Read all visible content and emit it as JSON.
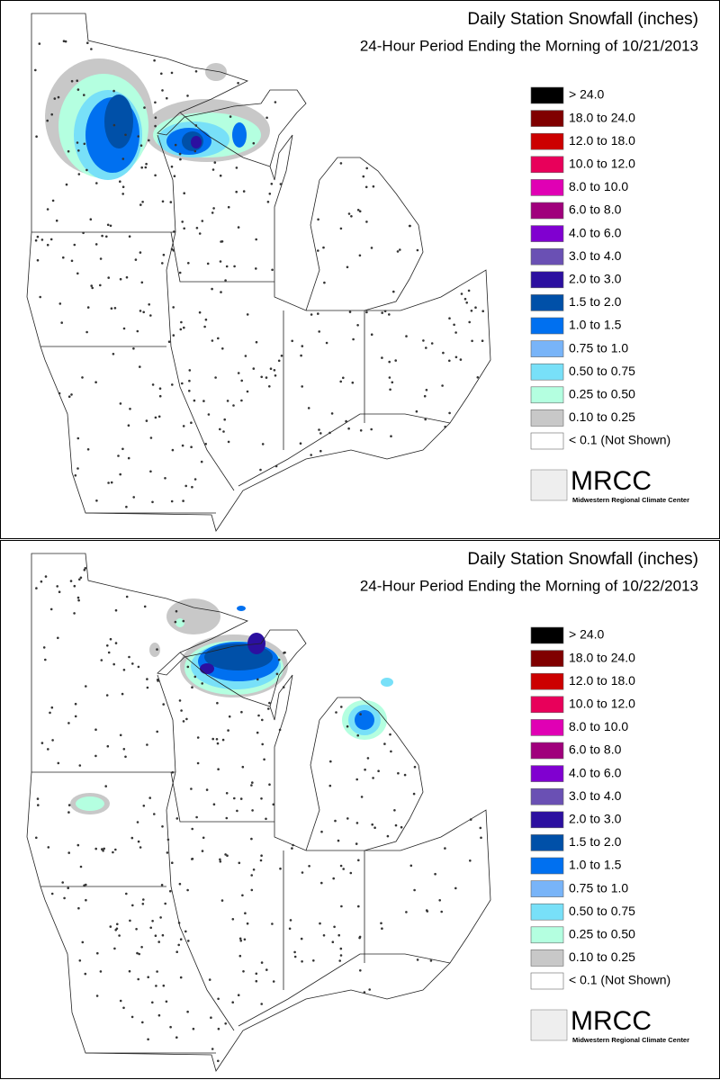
{
  "panels": [
    {
      "title": "Daily Station Snowfall (inches)",
      "subtitle": "24-Hour Period Ending the Morning of 10/21/2013",
      "legend": [
        {
          "label": "> 24.0",
          "color": "#000000"
        },
        {
          "label": "18.0 to 24.0",
          "color": "#800000"
        },
        {
          "label": "12.0 to 18.0",
          "color": "#cc0000"
        },
        {
          "label": "10.0 to 12.0",
          "color": "#e8005a"
        },
        {
          "label": "8.0 to 10.0",
          "color": "#e000b4"
        },
        {
          "label": "6.0 to 8.0",
          "color": "#a0007c"
        },
        {
          "label": "4.0 to 6.0",
          "color": "#8000d0"
        },
        {
          "label": "3.0 to 4.0",
          "color": "#6a50b4"
        },
        {
          "label": "2.0 to 3.0",
          "color": "#2c10a0"
        },
        {
          "label": "1.5 to 2.0",
          "color": "#0050a8"
        },
        {
          "label": "1.0 to 1.5",
          "color": "#0070f0"
        },
        {
          "label": "0.75 to 1.0",
          "color": "#78b4f8"
        },
        {
          "label": "0.50 to 0.75",
          "color": "#78e0f8"
        },
        {
          "label": "0.25 to 0.50",
          "color": "#b4ffe0"
        },
        {
          "label": "0.10 to 0.25",
          "color": "#c8c8c8"
        },
        {
          "label": "< 0.1 (Not Shown)",
          "color": "#ffffff"
        }
      ],
      "logo": {
        "name": "MRCC",
        "caption": "Midwestern Regional Climate Center"
      }
    },
    {
      "title": "Daily Station Snowfall (inches)",
      "subtitle": "24-Hour Period Ending the Morning of 10/22/2013",
      "legend": [
        {
          "label": "> 24.0",
          "color": "#000000"
        },
        {
          "label": "18.0 to 24.0",
          "color": "#800000"
        },
        {
          "label": "12.0 to 18.0",
          "color": "#cc0000"
        },
        {
          "label": "10.0 to 12.0",
          "color": "#e8005a"
        },
        {
          "label": "8.0 to 10.0",
          "color": "#e000b4"
        },
        {
          "label": "6.0 to 8.0",
          "color": "#a0007c"
        },
        {
          "label": "4.0 to 6.0",
          "color": "#8000d0"
        },
        {
          "label": "3.0 to 4.0",
          "color": "#6a50b4"
        },
        {
          "label": "2.0 to 3.0",
          "color": "#2c10a0"
        },
        {
          "label": "1.5 to 2.0",
          "color": "#0050a8"
        },
        {
          "label": "1.0 to 1.5",
          "color": "#0070f0"
        },
        {
          "label": "0.75 to 1.0",
          "color": "#78b4f8"
        },
        {
          "label": "0.50 to 0.75",
          "color": "#78e0f8"
        },
        {
          "label": "0.25 to 0.50",
          "color": "#b4ffe0"
        },
        {
          "label": "0.10 to 0.25",
          "color": "#c8c8c8"
        },
        {
          "label": "< 0.1 (Not Shown)",
          "color": "#ffffff"
        }
      ],
      "logo": {
        "name": "MRCC",
        "caption": "Midwestern Regional Climate Center"
      }
    }
  ]
}
